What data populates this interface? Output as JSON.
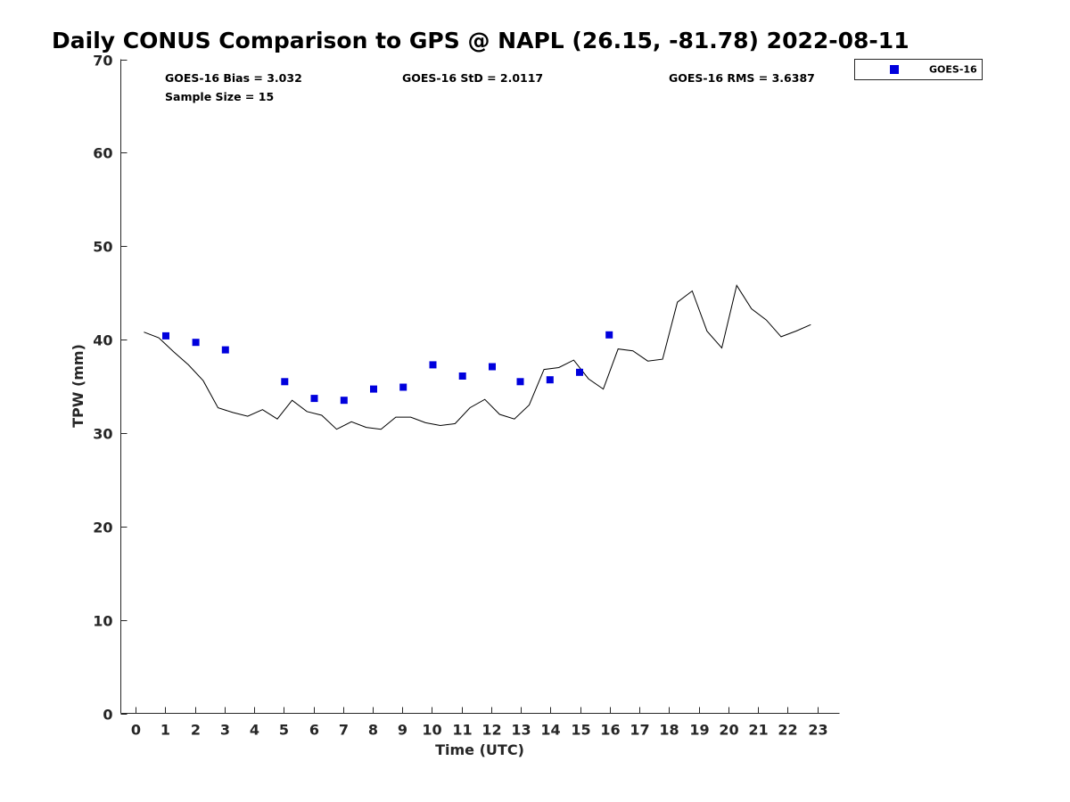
{
  "chart_data": {
    "type": "scatter",
    "title": "Daily CONUS Comparison to GPS @ NAPL (26.15, -81.78) 2022-08-11",
    "xlabel": "Time (UTC)",
    "ylabel": "TPW (mm)",
    "xlim": [
      -0.5,
      23.75
    ],
    "ylim": [
      0,
      70
    ],
    "xticks": [
      0,
      1,
      2,
      3,
      4,
      5,
      6,
      7,
      8,
      9,
      10,
      11,
      12,
      13,
      14,
      15,
      16,
      17,
      18,
      19,
      20,
      21,
      22,
      23
    ],
    "yticks": [
      0,
      10,
      20,
      30,
      40,
      50,
      60,
      70
    ],
    "grid": false,
    "legend_position": "top-right, outside plot",
    "stats": {
      "bias": "GOES-16 Bias = 3.032",
      "std": "GOES-16 StD = 2.0117",
      "rms": "GOES-16 RMS = 3.6387",
      "sample_size": "Sample Size = 15"
    },
    "series": [
      {
        "name": "GOES-16",
        "type": "scatter",
        "marker": "square",
        "color": "#0000dd",
        "x": [
          1.02,
          2.03,
          3.03,
          5.03,
          6.03,
          7.03,
          8.03,
          9.03,
          10.03,
          11.03,
          12.03,
          12.98,
          13.98,
          14.98,
          15.98
        ],
        "y": [
          40.4,
          39.7,
          38.9,
          35.5,
          33.7,
          33.5,
          34.7,
          34.9,
          37.3,
          36.1,
          37.1,
          35.5,
          35.7,
          36.5,
          40.5
        ]
      },
      {
        "type": "line",
        "color": "#000000",
        "x": [
          0.28,
          0.78,
          1.28,
          1.78,
          2.28,
          2.78,
          3.28,
          3.78,
          4.28,
          4.78,
          5.28,
          5.78,
          6.28,
          6.78,
          7.28,
          7.78,
          8.28,
          8.78,
          9.28,
          9.78,
          10.28,
          10.78,
          11.28,
          11.78,
          12.28,
          12.78,
          13.28,
          13.78,
          14.28,
          14.78,
          15.28,
          15.78,
          16.28,
          16.78,
          17.28,
          17.78,
          18.28,
          18.78,
          19.28,
          19.78,
          20.28,
          20.78,
          21.28,
          21.78,
          22.28,
          22.78
        ],
        "y": [
          40.8,
          40.2,
          38.7,
          37.3,
          35.6,
          32.7,
          32.2,
          31.8,
          32.5,
          31.5,
          33.5,
          32.3,
          31.9,
          30.4,
          31.2,
          30.6,
          30.4,
          31.7,
          31.7,
          31.1,
          30.8,
          31.0,
          32.7,
          33.6,
          32.0,
          31.5,
          33.0,
          36.8,
          37.0,
          37.8,
          35.8,
          34.7,
          39.0,
          38.8,
          37.7,
          37.9,
          44.0,
          45.2,
          40.9,
          39.1,
          45.8,
          43.3,
          42.1,
          40.3,
          40.9,
          41.6
        ]
      }
    ]
  }
}
